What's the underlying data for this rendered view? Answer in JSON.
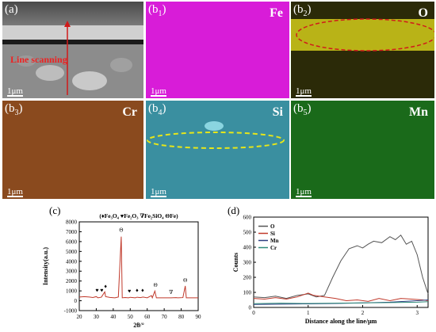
{
  "panels": {
    "a": {
      "label": "(a)",
      "annotation": "Line scanning",
      "scale": "1μm"
    },
    "b1": {
      "label_main": "(b",
      "label_sub": "1",
      "label_end": ")",
      "element": "Fe",
      "scale": "1μm"
    },
    "b2": {
      "label_main": "(b",
      "label_sub": "2",
      "label_end": ")",
      "element": "O",
      "scale": "1μm"
    },
    "b3": {
      "label_main": "(b",
      "label_sub": "3",
      "label_end": ")",
      "element": "Cr",
      "scale": "1μm"
    },
    "b4": {
      "label_main": "(b",
      "label_sub": "4",
      "label_end": ")",
      "element": "Si",
      "scale": "1μm"
    },
    "b5": {
      "label_main": "(b",
      "label_sub": "5",
      "label_end": ")",
      "element": "Mn",
      "scale": "1μm"
    }
  },
  "colors": {
    "fe_map": "#d81cd8",
    "o_map_bg": "#2b2a08",
    "o_band": "#d9d21a",
    "cr_map": "#8a4a1e",
    "si_map": "#3a8fa0",
    "mn_map": "#1a6a1a",
    "ellipse_red": "#d11a1a",
    "ellipse_yellow": "#e6e61a",
    "xrd_line": "#c0392b"
  },
  "chart_data": [
    {
      "type": "line",
      "panel_label": "(c)",
      "legend": "(♦Fe₃O₄ ♥Fe₂O₃ ∇Fe₂SiO₄ ΘFe)",
      "xlabel": "2θ/°",
      "ylabel": "Intensity(a.u.)",
      "xlim": [
        20,
        90
      ],
      "ylim": [
        -1000,
        8000
      ],
      "xticks": [
        20,
        30,
        40,
        50,
        60,
        70,
        80,
        90
      ],
      "yticks": [
        -1000,
        0,
        1000,
        2000,
        3000,
        4000,
        5000,
        6000,
        7000,
        8000
      ],
      "series": [
        {
          "values": [
            [
              20,
              380
            ],
            [
              23,
              420
            ],
            [
              26,
              380
            ],
            [
              28,
              330
            ],
            [
              30,
              420
            ],
            [
              31,
              300
            ],
            [
              33,
              360
            ],
            [
              35,
              900
            ],
            [
              35.5,
              420
            ],
            [
              38,
              340
            ],
            [
              41,
              300
            ],
            [
              43,
              380
            ],
            [
              44.7,
              6500
            ],
            [
              45.3,
              300
            ],
            [
              47,
              330
            ],
            [
              49,
              300
            ],
            [
              50,
              350
            ],
            [
              53,
              300
            ],
            [
              54,
              360
            ],
            [
              56,
              320
            ],
            [
              57.5,
              380
            ],
            [
              60,
              300
            ],
            [
              62.5,
              520
            ],
            [
              63,
              300
            ],
            [
              64.5,
              980
            ],
            [
              65.4,
              300
            ],
            [
              68,
              300
            ],
            [
              70,
              300
            ],
            [
              74,
              300
            ],
            [
              77,
              320
            ],
            [
              78,
              300
            ],
            [
              81,
              320
            ],
            [
              82.4,
              1500
            ],
            [
              83,
              300
            ],
            [
              86,
              300
            ],
            [
              90,
              300
            ]
          ]
        }
      ],
      "peak_markers": [
        {
          "x": 30.5,
          "y": 900,
          "symbol": "♥"
        },
        {
          "x": 33.2,
          "y": 900,
          "symbol": "♥"
        },
        {
          "x": 35.5,
          "y": 1300,
          "symbol": "♦"
        },
        {
          "x": 44.7,
          "y": 7000,
          "symbol": "Θ"
        },
        {
          "x": 49.5,
          "y": 800,
          "symbol": "♥"
        },
        {
          "x": 54,
          "y": 900,
          "symbol": "♦"
        },
        {
          "x": 57.3,
          "y": 900,
          "symbol": "♦"
        },
        {
          "x": 64.9,
          "y": 1400,
          "symbol": "Θ"
        },
        {
          "x": 74,
          "y": 700,
          "symbol": "∇"
        },
        {
          "x": 82.4,
          "y": 1900,
          "symbol": "Θ"
        }
      ]
    },
    {
      "type": "line",
      "panel_label": "(d)",
      "xlabel": "Distance along the line/μm",
      "ylabel": "Counts",
      "xlim": [
        0,
        3.2
      ],
      "ylim": [
        0,
        600
      ],
      "xticks": [
        0,
        1,
        2,
        3
      ],
      "yticks": [
        0,
        100,
        200,
        300,
        400,
        500,
        600
      ],
      "series": [
        {
          "name": "O",
          "color": "#555555",
          "values": [
            [
              0,
              70
            ],
            [
              0.2,
              65
            ],
            [
              0.4,
              75
            ],
            [
              0.6,
              60
            ],
            [
              0.8,
              80
            ],
            [
              1.0,
              90
            ],
            [
              1.15,
              70
            ],
            [
              1.3,
              80
            ],
            [
              1.45,
              200
            ],
            [
              1.6,
              310
            ],
            [
              1.75,
              390
            ],
            [
              1.9,
              410
            ],
            [
              2.0,
              395
            ],
            [
              2.1,
              420
            ],
            [
              2.2,
              440
            ],
            [
              2.35,
              430
            ],
            [
              2.5,
              470
            ],
            [
              2.6,
              450
            ],
            [
              2.7,
              480
            ],
            [
              2.8,
              420
            ],
            [
              2.9,
              440
            ],
            [
              3.0,
              350
            ],
            [
              3.1,
              200
            ],
            [
              3.2,
              90
            ]
          ]
        },
        {
          "name": "Si",
          "color": "#c0392b",
          "values": [
            [
              0,
              60
            ],
            [
              0.2,
              55
            ],
            [
              0.4,
              65
            ],
            [
              0.6,
              55
            ],
            [
              0.8,
              70
            ],
            [
              1.0,
              95
            ],
            [
              1.1,
              80
            ],
            [
              1.3,
              70
            ],
            [
              1.5,
              60
            ],
            [
              1.7,
              45
            ],
            [
              1.9,
              50
            ],
            [
              2.1,
              40
            ],
            [
              2.3,
              60
            ],
            [
              2.5,
              45
            ],
            [
              2.7,
              60
            ],
            [
              2.9,
              55
            ],
            [
              3.1,
              50
            ],
            [
              3.2,
              45
            ]
          ]
        },
        {
          "name": "Mn",
          "color": "#2c3e80",
          "values": [
            [
              0,
              20
            ],
            [
              0.5,
              22
            ],
            [
              1.0,
              24
            ],
            [
              1.5,
              26
            ],
            [
              2.0,
              30
            ],
            [
              2.5,
              35
            ],
            [
              3.0,
              45
            ],
            [
              3.2,
              50
            ]
          ]
        },
        {
          "name": "Cr",
          "color": "#2e8b7a",
          "values": [
            [
              0,
              25
            ],
            [
              0.5,
              28
            ],
            [
              1.0,
              26
            ],
            [
              1.5,
              28
            ],
            [
              2.0,
              30
            ],
            [
              2.5,
              32
            ],
            [
              3.0,
              35
            ],
            [
              3.2,
              38
            ]
          ]
        }
      ]
    }
  ]
}
